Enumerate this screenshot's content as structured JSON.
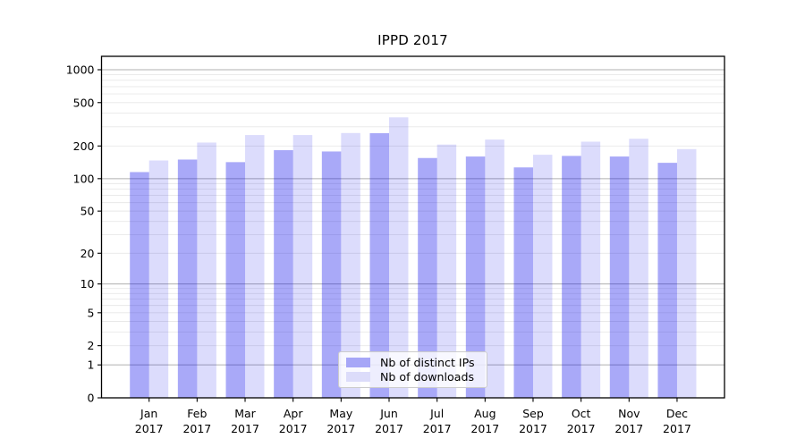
{
  "title": "IPPD 2017",
  "chart_data": {
    "type": "bar",
    "title": "IPPD 2017",
    "xlabel": "",
    "ylabel": "",
    "y_scale": "log1p",
    "ylim": [
      0,
      1330
    ],
    "grid": true,
    "legend_position": "lower center",
    "year": "2017",
    "categories": [
      "Jan",
      "Feb",
      "Mar",
      "Apr",
      "May",
      "Jun",
      "Jul",
      "Aug",
      "Sep",
      "Oct",
      "Nov",
      "Dec"
    ],
    "y_ticks": [
      0,
      1,
      2,
      5,
      10,
      20,
      50,
      100,
      200,
      500,
      1000
    ],
    "y_major_gridlines": [
      1,
      10,
      100,
      1000
    ],
    "series": [
      {
        "name": "Nb of distinct IPs",
        "color": "#a6a6f7",
        "fill": "rgba(10,10,235,0.35)",
        "values": [
          115,
          150,
          142,
          183,
          178,
          262,
          155,
          160,
          127,
          162,
          160,
          140
        ]
      },
      {
        "name": "Nb of downloads",
        "color": "#dcdcfa",
        "fill": "rgba(10,10,235,0.14)",
        "values": [
          147,
          215,
          252,
          252,
          263,
          366,
          206,
          229,
          166,
          219,
          233,
          187
        ]
      }
    ],
    "colors": {
      "major_grid": "#b0b0b0",
      "minor_grid": "#e8e8e8",
      "spine": "#000000",
      "text": "#000000"
    }
  }
}
